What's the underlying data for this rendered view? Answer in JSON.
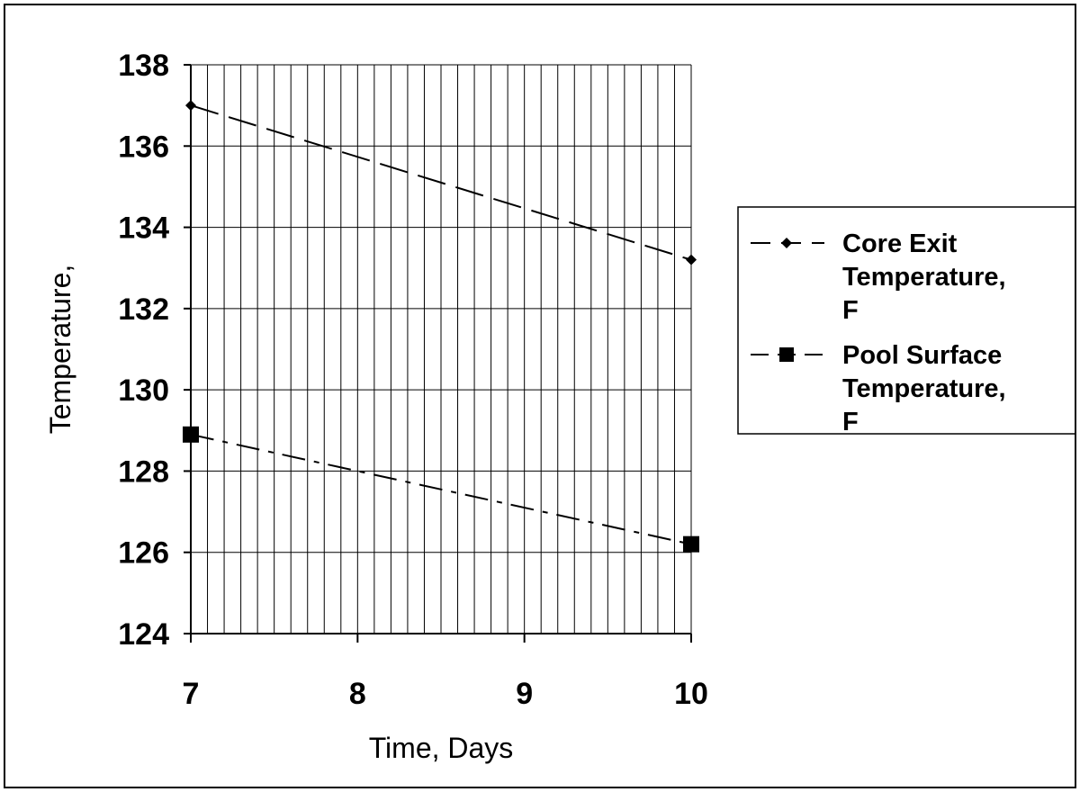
{
  "chart_data": {
    "type": "line",
    "title": "",
    "xlabel": "Time, Days",
    "ylabel": "Temperature,",
    "x": [
      7,
      10
    ],
    "xticks": [
      7,
      8,
      9,
      10
    ],
    "xlim": [
      7,
      10
    ],
    "yticks": [
      124,
      126,
      128,
      130,
      132,
      134,
      136,
      138
    ],
    "ylim": [
      124,
      138
    ],
    "grid": true,
    "legend_position": "right",
    "series": [
      {
        "name": "Core Exit Temperature, F",
        "legend_lines": [
          "Core Exit",
          "Temperature,",
          "F"
        ],
        "values": [
          137.0,
          133.2
        ],
        "color": "#000000",
        "line_style": "long-dash",
        "marker": "diamond"
      },
      {
        "name": "Pool Surface Temperature, F",
        "legend_lines": [
          "Pool Surface",
          "Temperature,",
          "F"
        ],
        "values": [
          128.9,
          126.2
        ],
        "color": "#000000",
        "line_style": "dash-dot",
        "marker": "square"
      }
    ]
  }
}
